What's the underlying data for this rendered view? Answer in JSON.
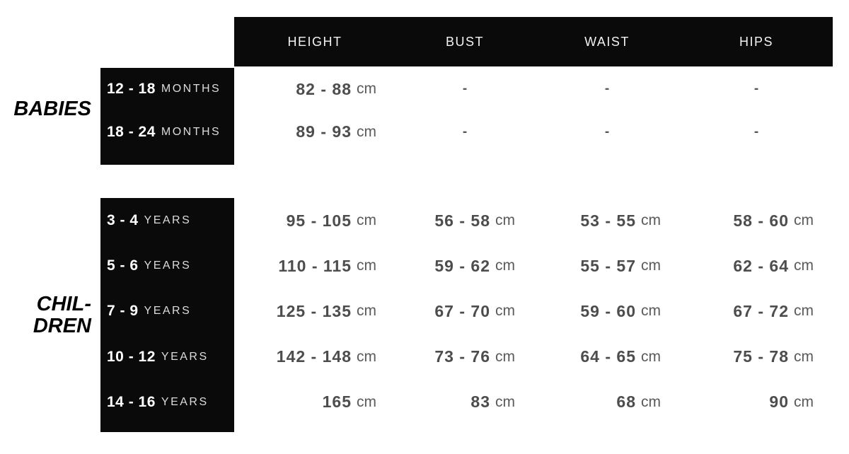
{
  "chart_data": {
    "type": "table",
    "unit": "cm",
    "empty_marker": "-",
    "columns": [
      "HEIGHT",
      "BUST",
      "WAIST",
      "HIPS"
    ],
    "sections": [
      {
        "group": "BABIES",
        "group_lines": [
          "BABIES"
        ],
        "rows": [
          {
            "age": "12 - 18",
            "age_unit": "MONTHS",
            "height": "82 - 88",
            "bust": "",
            "waist": "",
            "hips": ""
          },
          {
            "age": "18 - 24",
            "age_unit": "MONTHS",
            "height": "89 - 93",
            "bust": "",
            "waist": "",
            "hips": ""
          }
        ]
      },
      {
        "group": "CHILDREN",
        "group_lines": [
          "CHIL-",
          "DREN"
        ],
        "rows": [
          {
            "age": "3 - 4",
            "age_unit": "YEARS",
            "height": "95 - 105",
            "bust": "56 - 58",
            "waist": "53 - 55",
            "hips": "58 - 60"
          },
          {
            "age": "5 - 6",
            "age_unit": "YEARS",
            "height": "110 - 115",
            "bust": "59 - 62",
            "waist": "55 - 57",
            "hips": "62 - 64"
          },
          {
            "age": "7 - 9",
            "age_unit": "YEARS",
            "height": "125 - 135",
            "bust": "67 - 70",
            "waist": "59 - 60",
            "hips": "67 - 72"
          },
          {
            "age": "10 - 12",
            "age_unit": "YEARS",
            "height": "142 - 148",
            "bust": "73 - 76",
            "waist": "64 - 65",
            "hips": "75 - 78"
          },
          {
            "age": "14 - 16",
            "age_unit": "YEARS",
            "height": "165",
            "bust": "83",
            "waist": "68",
            "hips": "90"
          }
        ]
      }
    ]
  },
  "colors": {
    "panel_black": "#0a0a0a",
    "value_gray": "#4d4d4d",
    "unit_gray": "#5a5a5a",
    "header_white": "#f2f2f2",
    "age_unit_white": "#dcdcdc",
    "background": "#ffffff"
  }
}
